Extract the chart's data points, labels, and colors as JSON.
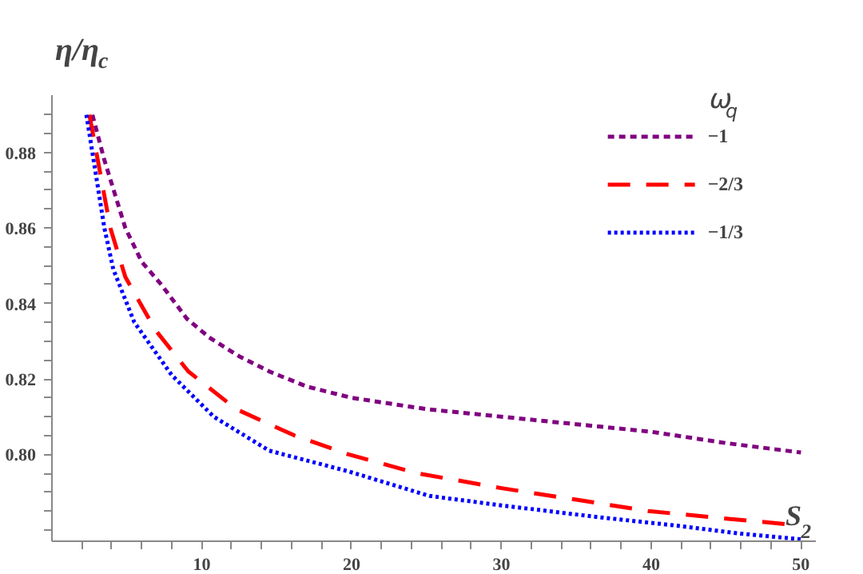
{
  "chart_data": {
    "type": "line",
    "ylabel": "η/η$_{c}$",
    "xlabel": "S$_{2}$",
    "legend_title": "ω$_{q}$",
    "legend": "top right",
    "grid": false,
    "marker": "none",
    "xlim": [
      0,
      51
    ],
    "ylim": [
      0.777,
      0.895
    ],
    "xticks": [
      {
        "value": 2,
        "label": null
      },
      {
        "value": 4,
        "label": null
      },
      {
        "value": 6,
        "label": null
      },
      {
        "value": 8,
        "label": null
      },
      10,
      {
        "value": 12,
        "label": null
      },
      {
        "value": 14,
        "label": null
      },
      {
        "value": 16,
        "label": null
      },
      {
        "value": 18,
        "label": null
      },
      20,
      {
        "value": 22,
        "label": null
      },
      {
        "value": 24,
        "label": null
      },
      {
        "value": 26,
        "label": null
      },
      {
        "value": 28,
        "label": null
      },
      30,
      {
        "value": 32,
        "label": null
      },
      {
        "value": 34,
        "label": null
      },
      {
        "value": 36,
        "label": null
      },
      {
        "value": 38,
        "label": null
      },
      40,
      {
        "value": 42,
        "label": null
      },
      {
        "value": 44,
        "label": null
      },
      {
        "value": 46,
        "label": null
      },
      {
        "value": 48,
        "label": null
      },
      50
    ],
    "yticks": [
      {
        "value": 0.78,
        "label": null
      },
      {
        "value": 0.785,
        "label": null
      },
      {
        "value": 0.79,
        "label": null
      },
      {
        "value": 0.795,
        "label": null
      },
      {
        "value": 0.8,
        "label": "0.80"
      },
      {
        "value": 0.805,
        "label": null
      },
      {
        "value": 0.81,
        "label": null
      },
      {
        "value": 0.815,
        "label": null
      },
      {
        "value": 0.82,
        "label": "0.82"
      },
      {
        "value": 0.825,
        "label": null
      },
      {
        "value": 0.83,
        "label": null
      },
      {
        "value": 0.835,
        "label": null
      },
      {
        "value": 0.84,
        "label": "0.84"
      },
      {
        "value": 0.845,
        "label": null
      },
      {
        "value": 0.85,
        "label": null
      },
      {
        "value": 0.855,
        "label": null
      },
      {
        "value": 0.86,
        "label": "0.86"
      },
      {
        "value": 0.865,
        "label": null
      },
      {
        "value": 0.87,
        "label": null
      },
      {
        "value": 0.875,
        "label": null
      },
      {
        "value": 0.88,
        "label": "0.88"
      },
      {
        "value": 0.885,
        "label": null
      },
      {
        "value": 0.89,
        "label": null
      }
    ],
    "series": [
      {
        "name": "−1",
        "color": "#800080",
        "line_style": "dashed",
        "x": [
          2.7,
          3.5,
          4.9,
          6,
          7.3,
          9,
          10.5,
          12.5,
          14.5,
          17,
          20,
          25,
          30,
          35,
          40,
          45,
          50
        ],
        "values": [
          0.89,
          0.878,
          0.86,
          0.851,
          0.845,
          0.836,
          0.831,
          0.826,
          0.822,
          0.818,
          0.815,
          0.812,
          0.81,
          0.808,
          0.806,
          0.803,
          0.8005
        ]
      },
      {
        "name": "−2/3",
        "color": "#ff0000",
        "line_style": "longdash",
        "x": [
          2.5,
          3.9,
          4.9,
          6.9,
          9.1,
          12.3,
          16.2,
          19.8,
          24.4,
          30.1,
          35,
          39.8,
          45,
          49.1
        ],
        "values": [
          0.89,
          0.86,
          0.847,
          0.833,
          0.822,
          0.812,
          0.805,
          0.8,
          0.795,
          0.791,
          0.788,
          0.785,
          0.783,
          0.7815
        ]
      },
      {
        "name": "−1/3",
        "color": "#0000ff",
        "line_style": "dotted",
        "x": [
          2.3,
          3.5,
          4.1,
          5.5,
          8,
          10.8,
          14.5,
          19.8,
          25.2,
          30,
          36.2,
          42,
          46,
          50
        ],
        "values": [
          0.89,
          0.86,
          0.849,
          0.835,
          0.821,
          0.81,
          0.801,
          0.7955,
          0.789,
          0.7865,
          0.7835,
          0.781,
          0.779,
          0.7775
        ]
      }
    ]
  }
}
